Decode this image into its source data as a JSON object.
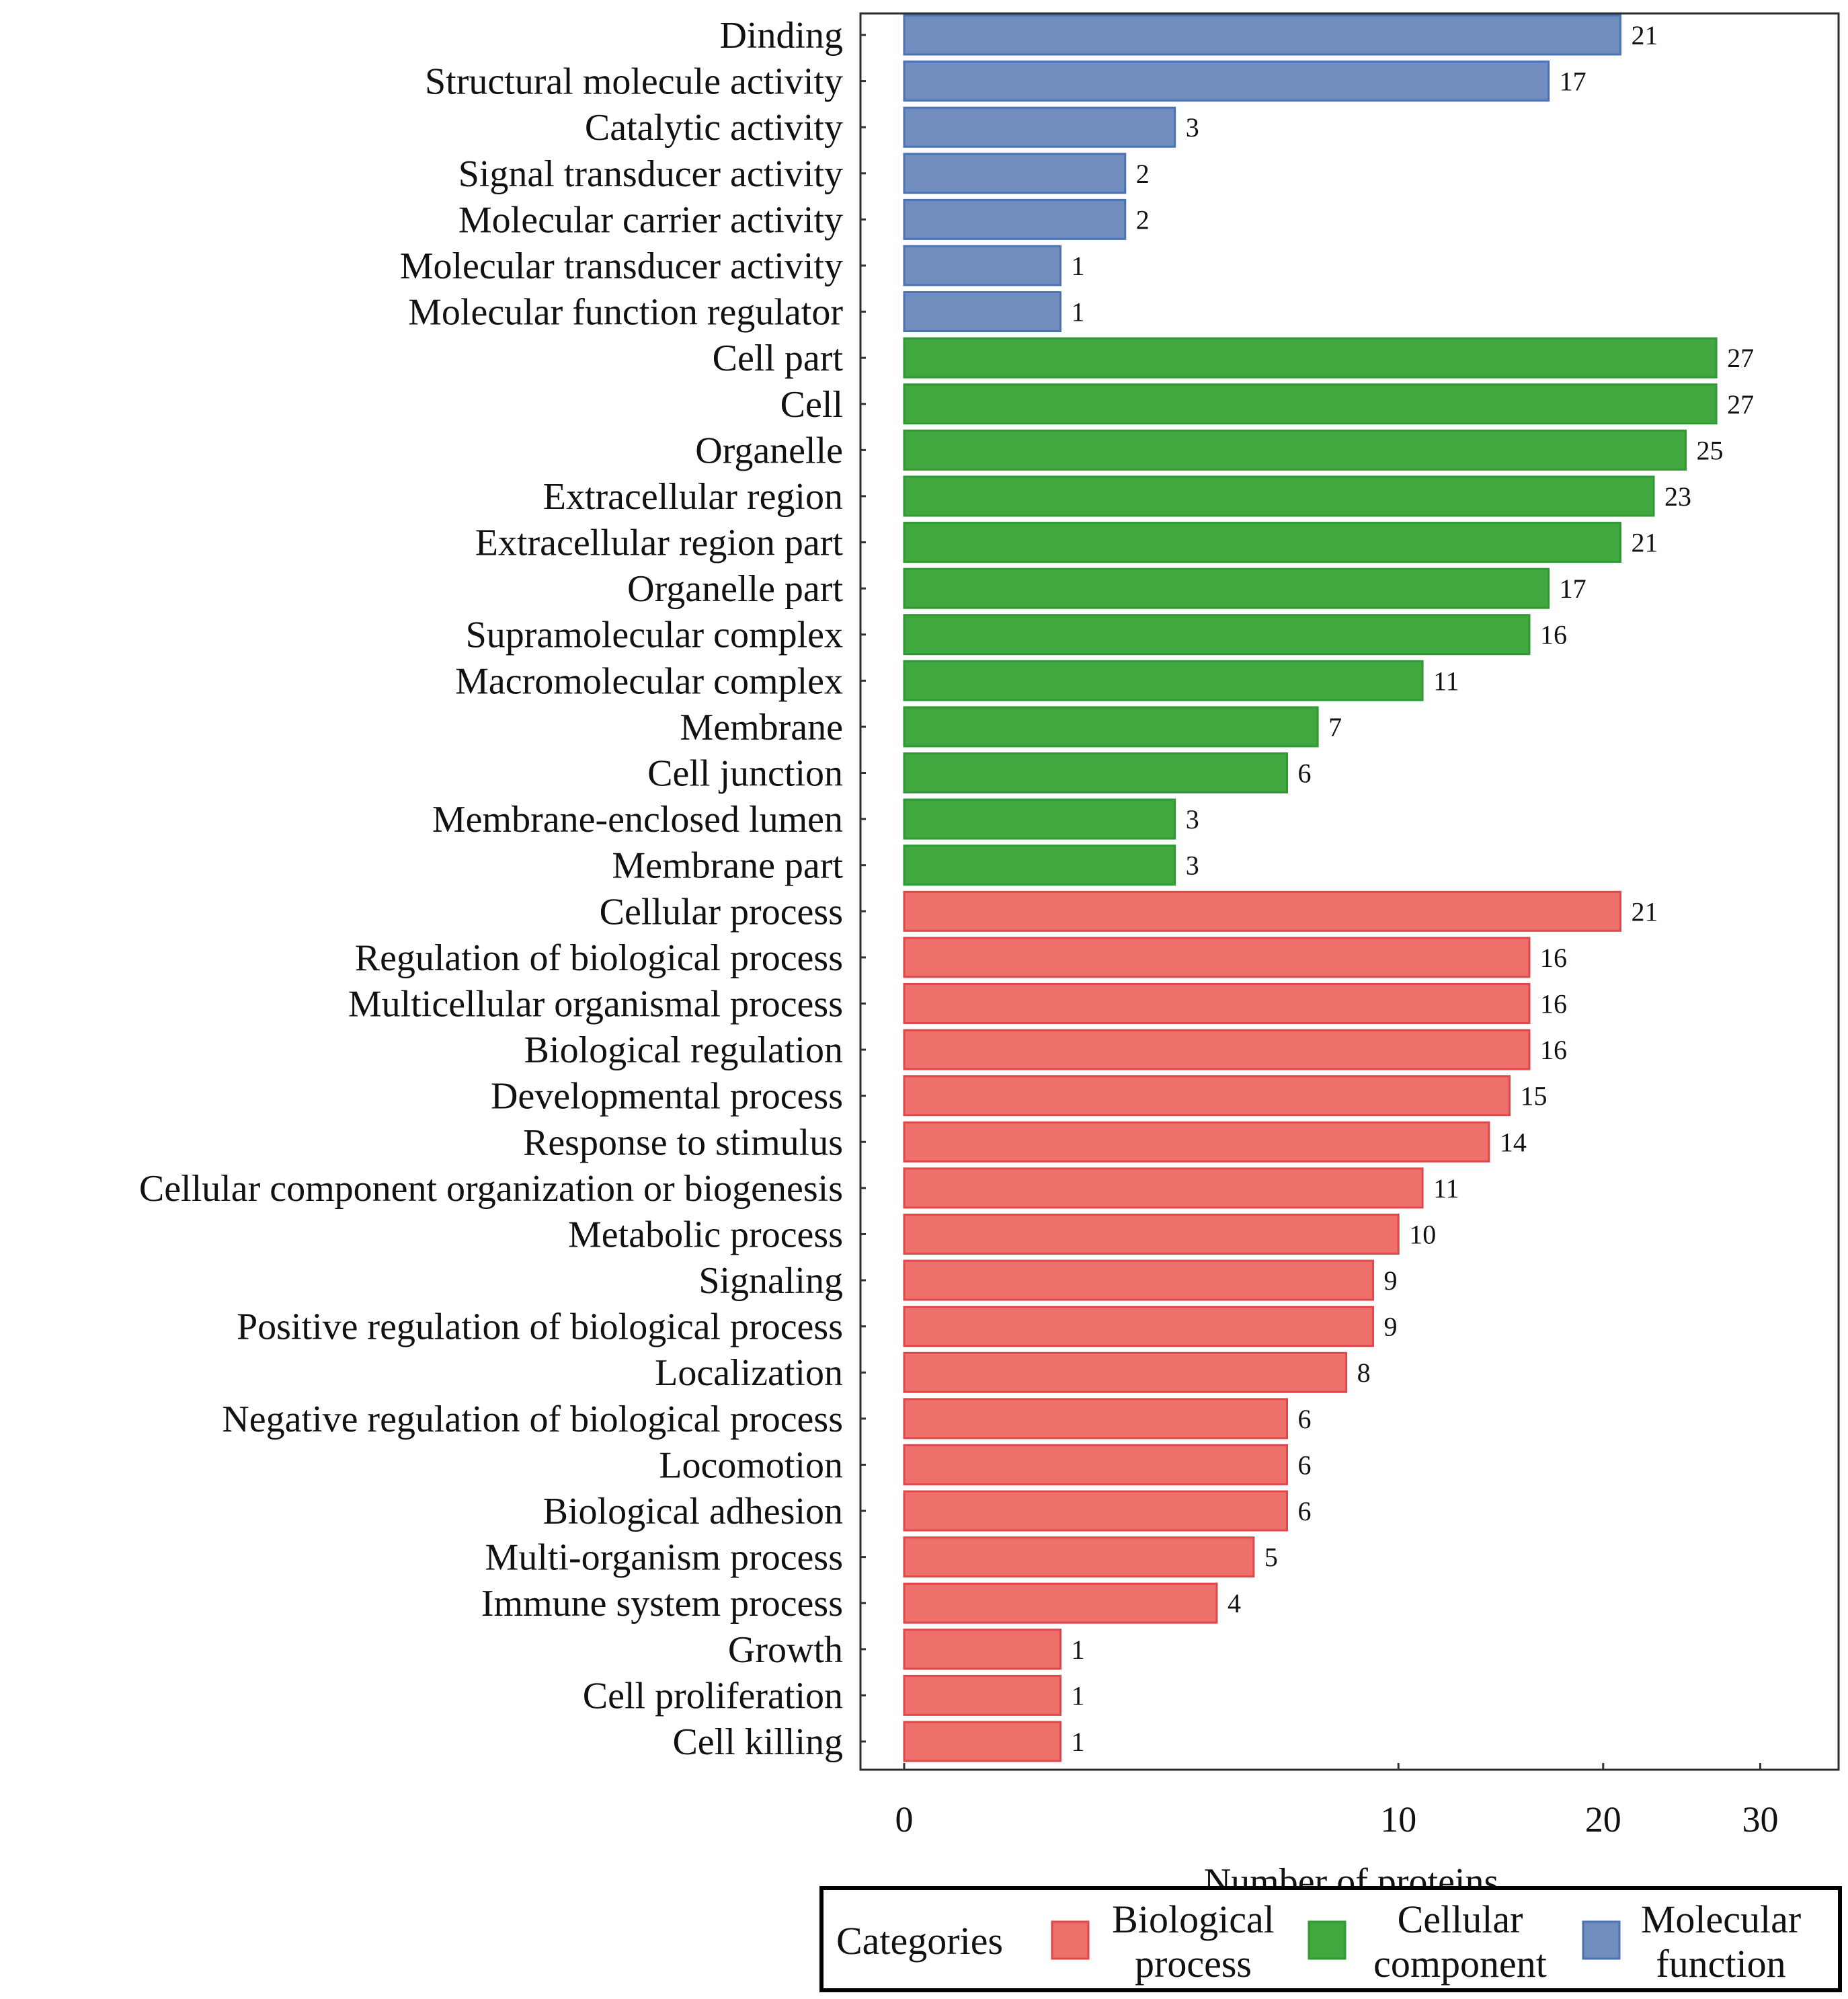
{
  "chart_data": {
    "type": "bar",
    "orientation": "horizontal",
    "title": "",
    "xlabel": "Number of proteins",
    "ylabel": "",
    "x_scale": "sqrt",
    "xlim": [
      0,
      33
    ],
    "xticks": [
      0,
      10,
      20,
      30
    ],
    "grid": false,
    "legend": {
      "title": "Categories",
      "placement": "bottom",
      "entries": [
        {
          "key": "bp",
          "label_lines": [
            "Biological",
            "process"
          ],
          "color": "#ee706a"
        },
        {
          "key": "cc",
          "label_lines": [
            "Cellular",
            "component"
          ],
          "color": "#41a83f"
        },
        {
          "key": "mf",
          "label_lines": [
            "Molecular",
            "function"
          ],
          "color": "#708dbe"
        }
      ]
    },
    "categories": [
      "Dinding",
      "Structural molecule activity",
      "Catalytic activity",
      "Signal transducer activity",
      "Molecular carrier activity",
      "Molecular transducer activity",
      "Molecular function regulator",
      "Cell part",
      "Cell",
      "Organelle",
      "Extracellular region",
      "Extracellular region part",
      "Organelle part",
      "Supramolecular complex",
      "Macromolecular complex",
      "Membrane",
      "Cell junction",
      "Membrane-enclosed lumen",
      "Membrane part",
      "Cellular process",
      "Regulation of biological process",
      "Multicellular organismal process",
      "Biological regulation",
      "Developmental process",
      "Response to stimulus",
      "Cellular component organization or biogenesis",
      "Metabolic process",
      "Signaling",
      "Positive regulation of biological process",
      "Localization",
      "Negative regulation of biological process",
      "Locomotion",
      "Biological adhesion",
      "Multi-organism process",
      "Immune system process",
      "Growth",
      "Cell proliferation",
      "Cell killing"
    ],
    "values": [
      21,
      17,
      3,
      2,
      2,
      1,
      1,
      27,
      27,
      25,
      23,
      21,
      17,
      16,
      11,
      7,
      6,
      3,
      3,
      21,
      16,
      16,
      16,
      15,
      14,
      11,
      10,
      9,
      9,
      8,
      6,
      6,
      6,
      5,
      4,
      1,
      1,
      1
    ],
    "groups": [
      "mf",
      "mf",
      "mf",
      "mf",
      "mf",
      "mf",
      "mf",
      "cc",
      "cc",
      "cc",
      "cc",
      "cc",
      "cc",
      "cc",
      "cc",
      "cc",
      "cc",
      "cc",
      "cc",
      "bp",
      "bp",
      "bp",
      "bp",
      "bp",
      "bp",
      "bp",
      "bp",
      "bp",
      "bp",
      "bp",
      "bp",
      "bp",
      "bp",
      "bp",
      "bp",
      "bp",
      "bp",
      "bp"
    ],
    "colors": {
      "bp": "#ee706a",
      "cc": "#41a83f",
      "mf": "#708dbe"
    },
    "edge_colors": {
      "bp": "#e0474b",
      "cc": "#2f9a34",
      "mf": "#4a72b5"
    }
  }
}
